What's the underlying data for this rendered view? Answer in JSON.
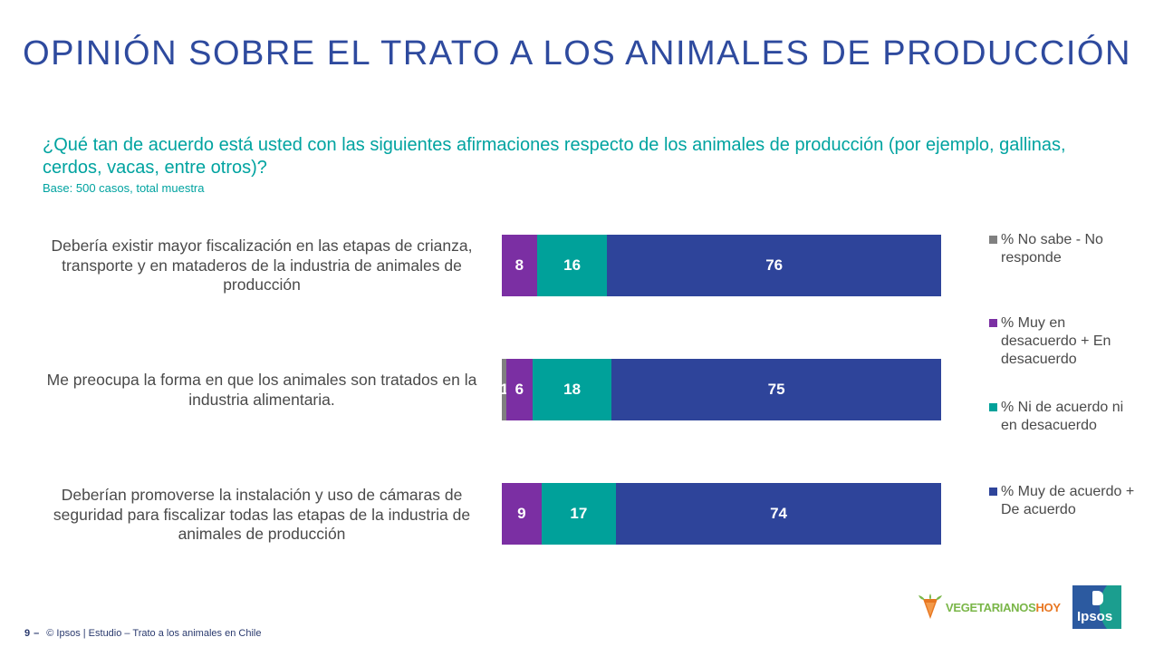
{
  "title": "OPINIÓN SOBRE EL TRATO A LOS ANIMALES DE PRODUCCIÓN",
  "question": "¿Qué tan de acuerdo está usted con las siguientes afirmaciones respecto de los animales de producción (por ejemplo, gallinas, cerdos, vacas, entre otros)?",
  "base": "Base: 500 casos, total muestra",
  "colors": {
    "no_sabe": "#808080",
    "desacuerdo": "#7b2fa3",
    "neutral": "#00a19a",
    "acuerdo": "#2e449a",
    "title": "#2e4a9e",
    "question": "#00a3a0"
  },
  "chart_data": {
    "type": "bar",
    "orientation": "horizontal",
    "stacked": true,
    "categories": [
      "Debería existir mayor fiscalización en las etapas de crianza, transporte y en mataderos de la industria de animales de producción",
      "Me preocupa la forma en que los animales son tratados en la industria alimentaria.",
      "Deberían promoverse la instalación y uso de cámaras de seguridad para fiscalizar todas las etapas de la industria de animales de producción"
    ],
    "series": [
      {
        "name": "% No sabe - No responde",
        "values": [
          0,
          1,
          0
        ],
        "labels": [
          "",
          "1",
          ""
        ]
      },
      {
        "name": "% Muy en desacuerdo + En desacuerdo",
        "values": [
          8,
          6,
          9
        ],
        "labels": [
          "8",
          "6",
          "9"
        ]
      },
      {
        "name": "% Ni de acuerdo ni en desacuerdo",
        "values": [
          16,
          18,
          17
        ],
        "labels": [
          "16",
          "18",
          "17"
        ]
      },
      {
        "name": "% Muy de acuerdo + De acuerdo",
        "values": [
          76,
          75,
          74
        ],
        "labels": [
          "76",
          "75",
          "74"
        ]
      }
    ],
    "legend_position": "right"
  },
  "footer": {
    "page": "9",
    "dash": "–",
    "text": "© Ipsos | Estudio – Trato a los animales en Chile"
  },
  "logos": {
    "vegetarianos_a": "VEGETARIANOS",
    "vegetarianos_b": "HOY",
    "ipsos": "Ipsos"
  }
}
